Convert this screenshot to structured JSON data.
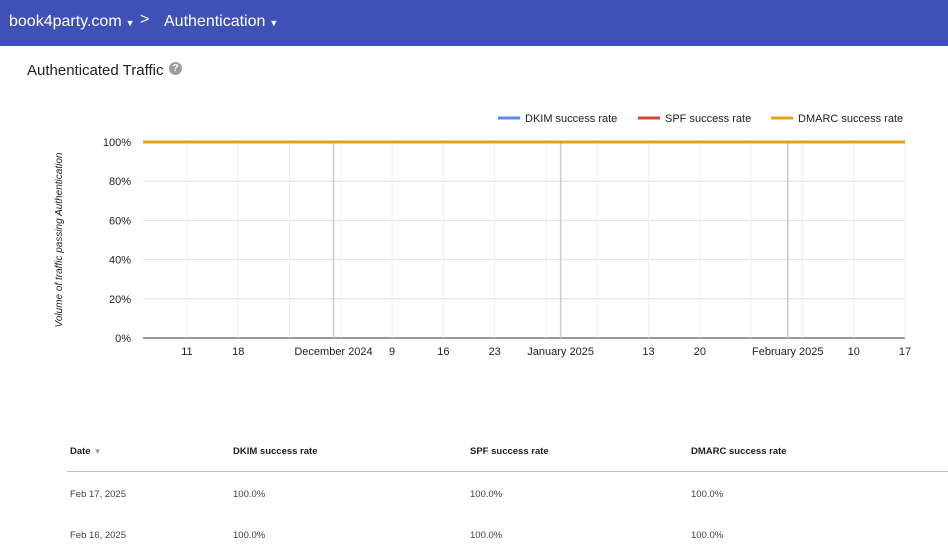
{
  "topbar": {
    "domain": "book4party.com",
    "separator": ">",
    "section": "Authentication",
    "color": "#3f51b5"
  },
  "section": {
    "title": "Authenticated Traffic",
    "help_icon": "help-circle-icon",
    "help_glyph": "?"
  },
  "chart_data": {
    "type": "line",
    "ylabel": "Volume of traffic passing Authentication",
    "ylim": [
      0,
      100
    ],
    "yticks": [
      "0%",
      "20%",
      "40%",
      "60%",
      "80%",
      "100%"
    ],
    "grid": true,
    "legend_position": "top-right",
    "x_range": [
      "2024-11-05",
      "2025-02-17"
    ],
    "x_ticks": [
      {
        "date": "2024-11-11",
        "label": "11",
        "major": false
      },
      {
        "date": "2024-11-18",
        "label": "18",
        "major": false
      },
      {
        "date": "2024-11-25",
        "label": "",
        "major": false
      },
      {
        "date": "2024-12-01",
        "label": "December 2024",
        "major": true
      },
      {
        "date": "2024-12-02",
        "label": "",
        "major": false
      },
      {
        "date": "2024-12-09",
        "label": "9",
        "major": false
      },
      {
        "date": "2024-12-16",
        "label": "16",
        "major": false
      },
      {
        "date": "2024-12-23",
        "label": "23",
        "major": false
      },
      {
        "date": "2024-12-30",
        "label": "",
        "major": false
      },
      {
        "date": "2025-01-01",
        "label": "January 2025",
        "major": true
      },
      {
        "date": "2025-01-06",
        "label": "",
        "major": false
      },
      {
        "date": "2025-01-13",
        "label": "13",
        "major": false
      },
      {
        "date": "2025-01-20",
        "label": "20",
        "major": false
      },
      {
        "date": "2025-01-27",
        "label": "",
        "major": false
      },
      {
        "date": "2025-02-01",
        "label": "February 2025",
        "major": true
      },
      {
        "date": "2025-02-03",
        "label": "",
        "major": false
      },
      {
        "date": "2025-02-10",
        "label": "10",
        "major": false
      },
      {
        "date": "2025-02-17",
        "label": "17",
        "major": false
      }
    ],
    "series": [
      {
        "name": "DKIM success rate",
        "color": "#5b8def",
        "x": [
          "2024-11-05",
          "2025-02-17"
        ],
        "values": [
          100,
          100
        ]
      },
      {
        "name": "SPF success rate",
        "color": "#db4437",
        "x": [
          "2024-11-05",
          "2025-02-17"
        ],
        "values": [
          100,
          100
        ]
      },
      {
        "name": "DMARC success rate",
        "color": "#e3a21a",
        "x": [
          "2024-11-05",
          "2025-02-17"
        ],
        "values": [
          100,
          100
        ]
      }
    ]
  },
  "table": {
    "headers": {
      "date": "Date",
      "dkim": "DKIM success rate",
      "spf": "SPF success rate",
      "dmarc": "DMARC success rate"
    },
    "sort_icon": "sort-down-icon",
    "sort_glyph": "▼",
    "rows": [
      {
        "date": "Feb 17, 2025",
        "dkim": "100.0%",
        "spf": "100.0%",
        "dmarc": "100.0%"
      },
      {
        "date": "Feb 16, 2025",
        "dkim": "100.0%",
        "spf": "100.0%",
        "dmarc": "100.0%"
      }
    ]
  }
}
